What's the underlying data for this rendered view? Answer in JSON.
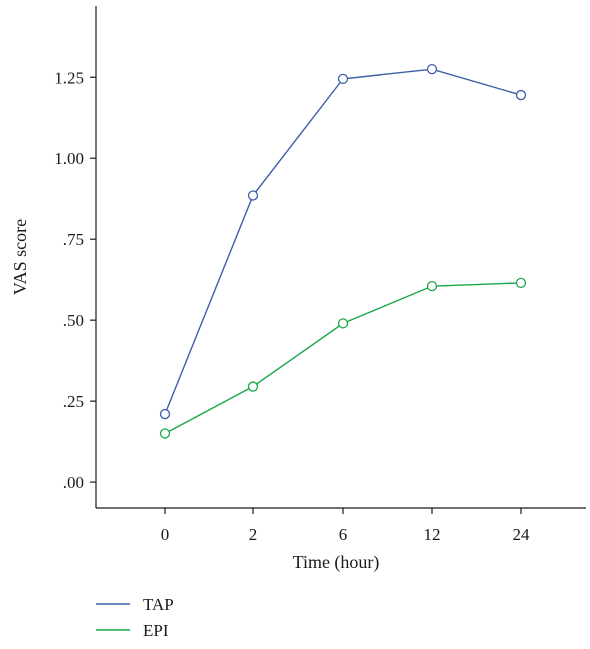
{
  "chart_data": {
    "type": "line",
    "title": "",
    "xlabel": "Time (hour)",
    "ylabel": "VAS score",
    "categories": [
      "0",
      "2",
      "6",
      "12",
      "24"
    ],
    "y_tick_labels": [
      ".00",
      ".25",
      ".50",
      ".75",
      "1.00",
      "1.25"
    ],
    "y_ticks": [
      0,
      0.25,
      0.5,
      0.75,
      1.0,
      1.25
    ],
    "ylim": [
      -0.08,
      1.47
    ],
    "grid": false,
    "legend_position": "bottom-left",
    "series": [
      {
        "name": "TAP",
        "color": "#3d5fa8",
        "values": [
          0.21,
          0.885,
          1.245,
          1.275,
          1.195
        ]
      },
      {
        "name": "EPI",
        "color": "#1aa64b",
        "values": [
          0.15,
          0.295,
          0.49,
          0.605,
          0.615
        ]
      }
    ]
  }
}
